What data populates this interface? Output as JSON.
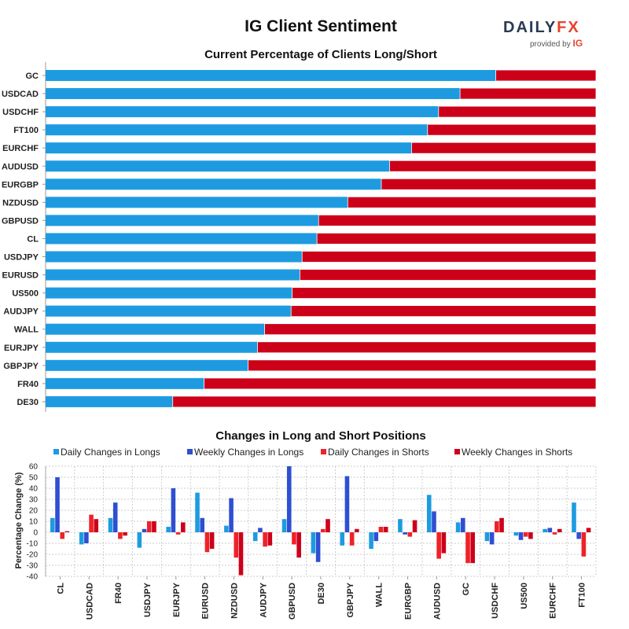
{
  "title": "IG Client Sentiment",
  "logo": {
    "brand_part1": "DAILY",
    "brand_part2": "FX",
    "provided_by": "provided by",
    "provider": "IG"
  },
  "colors": {
    "long": "#1e9be0",
    "short": "#cc0019",
    "daily_long": "#1e9be0",
    "weekly_long": "#2e4fd2",
    "daily_short": "#ee2228",
    "weekly_short": "#cc0019"
  },
  "chart_data": [
    {
      "type": "bar",
      "orientation": "horizontal",
      "stacked": true,
      "title": "Current Percentage of Clients Long/Short",
      "categories": [
        "GC",
        "USDCAD",
        "USDCHF",
        "FT100",
        "EURCHF",
        "AUDUSD",
        "EURGBP",
        "NZDUSD",
        "GBPUSD",
        "CL",
        "USDJPY",
        "EURUSD",
        "US500",
        "AUDJPY",
        "WALL",
        "EURJPY",
        "GBPJPY",
        "FR40",
        "DE30"
      ],
      "series": [
        {
          "name": "Long",
          "values": [
            81.8,
            75.3,
            71.4,
            69.4,
            66.5,
            62.5,
            61.0,
            54.9,
            49.6,
            49.3,
            46.6,
            46.2,
            44.8,
            44.6,
            39.8,
            38.5,
            36.8,
            28.8,
            23.1
          ]
        },
        {
          "name": "Short",
          "values": [
            18.2,
            24.7,
            28.6,
            30.6,
            33.5,
            37.5,
            39.0,
            45.1,
            50.4,
            50.7,
            53.4,
            53.8,
            55.2,
            55.4,
            60.2,
            61.5,
            63.2,
            71.2,
            76.9
          ]
        }
      ],
      "xlim": [
        0,
        100
      ]
    },
    {
      "type": "bar",
      "title": "Changes in Long and Short Positions",
      "ylabel": "Percentage Change (%)",
      "ylim": [
        -40,
        60
      ],
      "yticks": [
        60,
        50,
        40,
        30,
        20,
        10,
        0,
        -10,
        -20,
        -30,
        -40
      ],
      "categories": [
        "CL",
        "USDCAD",
        "FR40",
        "USDJPY",
        "EURJPY",
        "EURUSD",
        "NZDUSD",
        "AUDJPY",
        "GBPUSD",
        "DE30",
        "GBPJPY",
        "WALL",
        "EURGBP",
        "AUDUSD",
        "GC",
        "USDCHF",
        "US500",
        "EURCHF",
        "FT100"
      ],
      "series": [
        {
          "name": "Daily Changes in Longs",
          "values": [
            13,
            -11,
            13,
            -14,
            5,
            36,
            6,
            -8,
            12,
            -19,
            -12,
            -15,
            12,
            34,
            9,
            -8,
            -3,
            3,
            27
          ]
        },
        {
          "name": "Weekly Changes in Longs",
          "values": [
            50,
            -10,
            27,
            3,
            40,
            13,
            31,
            4,
            60,
            -27,
            51,
            -8,
            -2,
            19,
            13,
            -11,
            -7,
            4,
            -6
          ]
        },
        {
          "name": "Daily Changes in Shorts",
          "values": [
            -6,
            16,
            -6,
            10,
            -2,
            -18,
            -23,
            -13,
            -11,
            3,
            -12,
            5,
            -4,
            -24,
            -28,
            10,
            -4,
            -2,
            -22
          ]
        },
        {
          "name": "Weekly Changes in Shorts",
          "values": [
            1,
            12,
            -3,
            10,
            9,
            -15,
            -39,
            -12,
            -23,
            12,
            3,
            5,
            11,
            -19,
            -28,
            13,
            -6,
            3,
            4
          ]
        }
      ]
    }
  ]
}
